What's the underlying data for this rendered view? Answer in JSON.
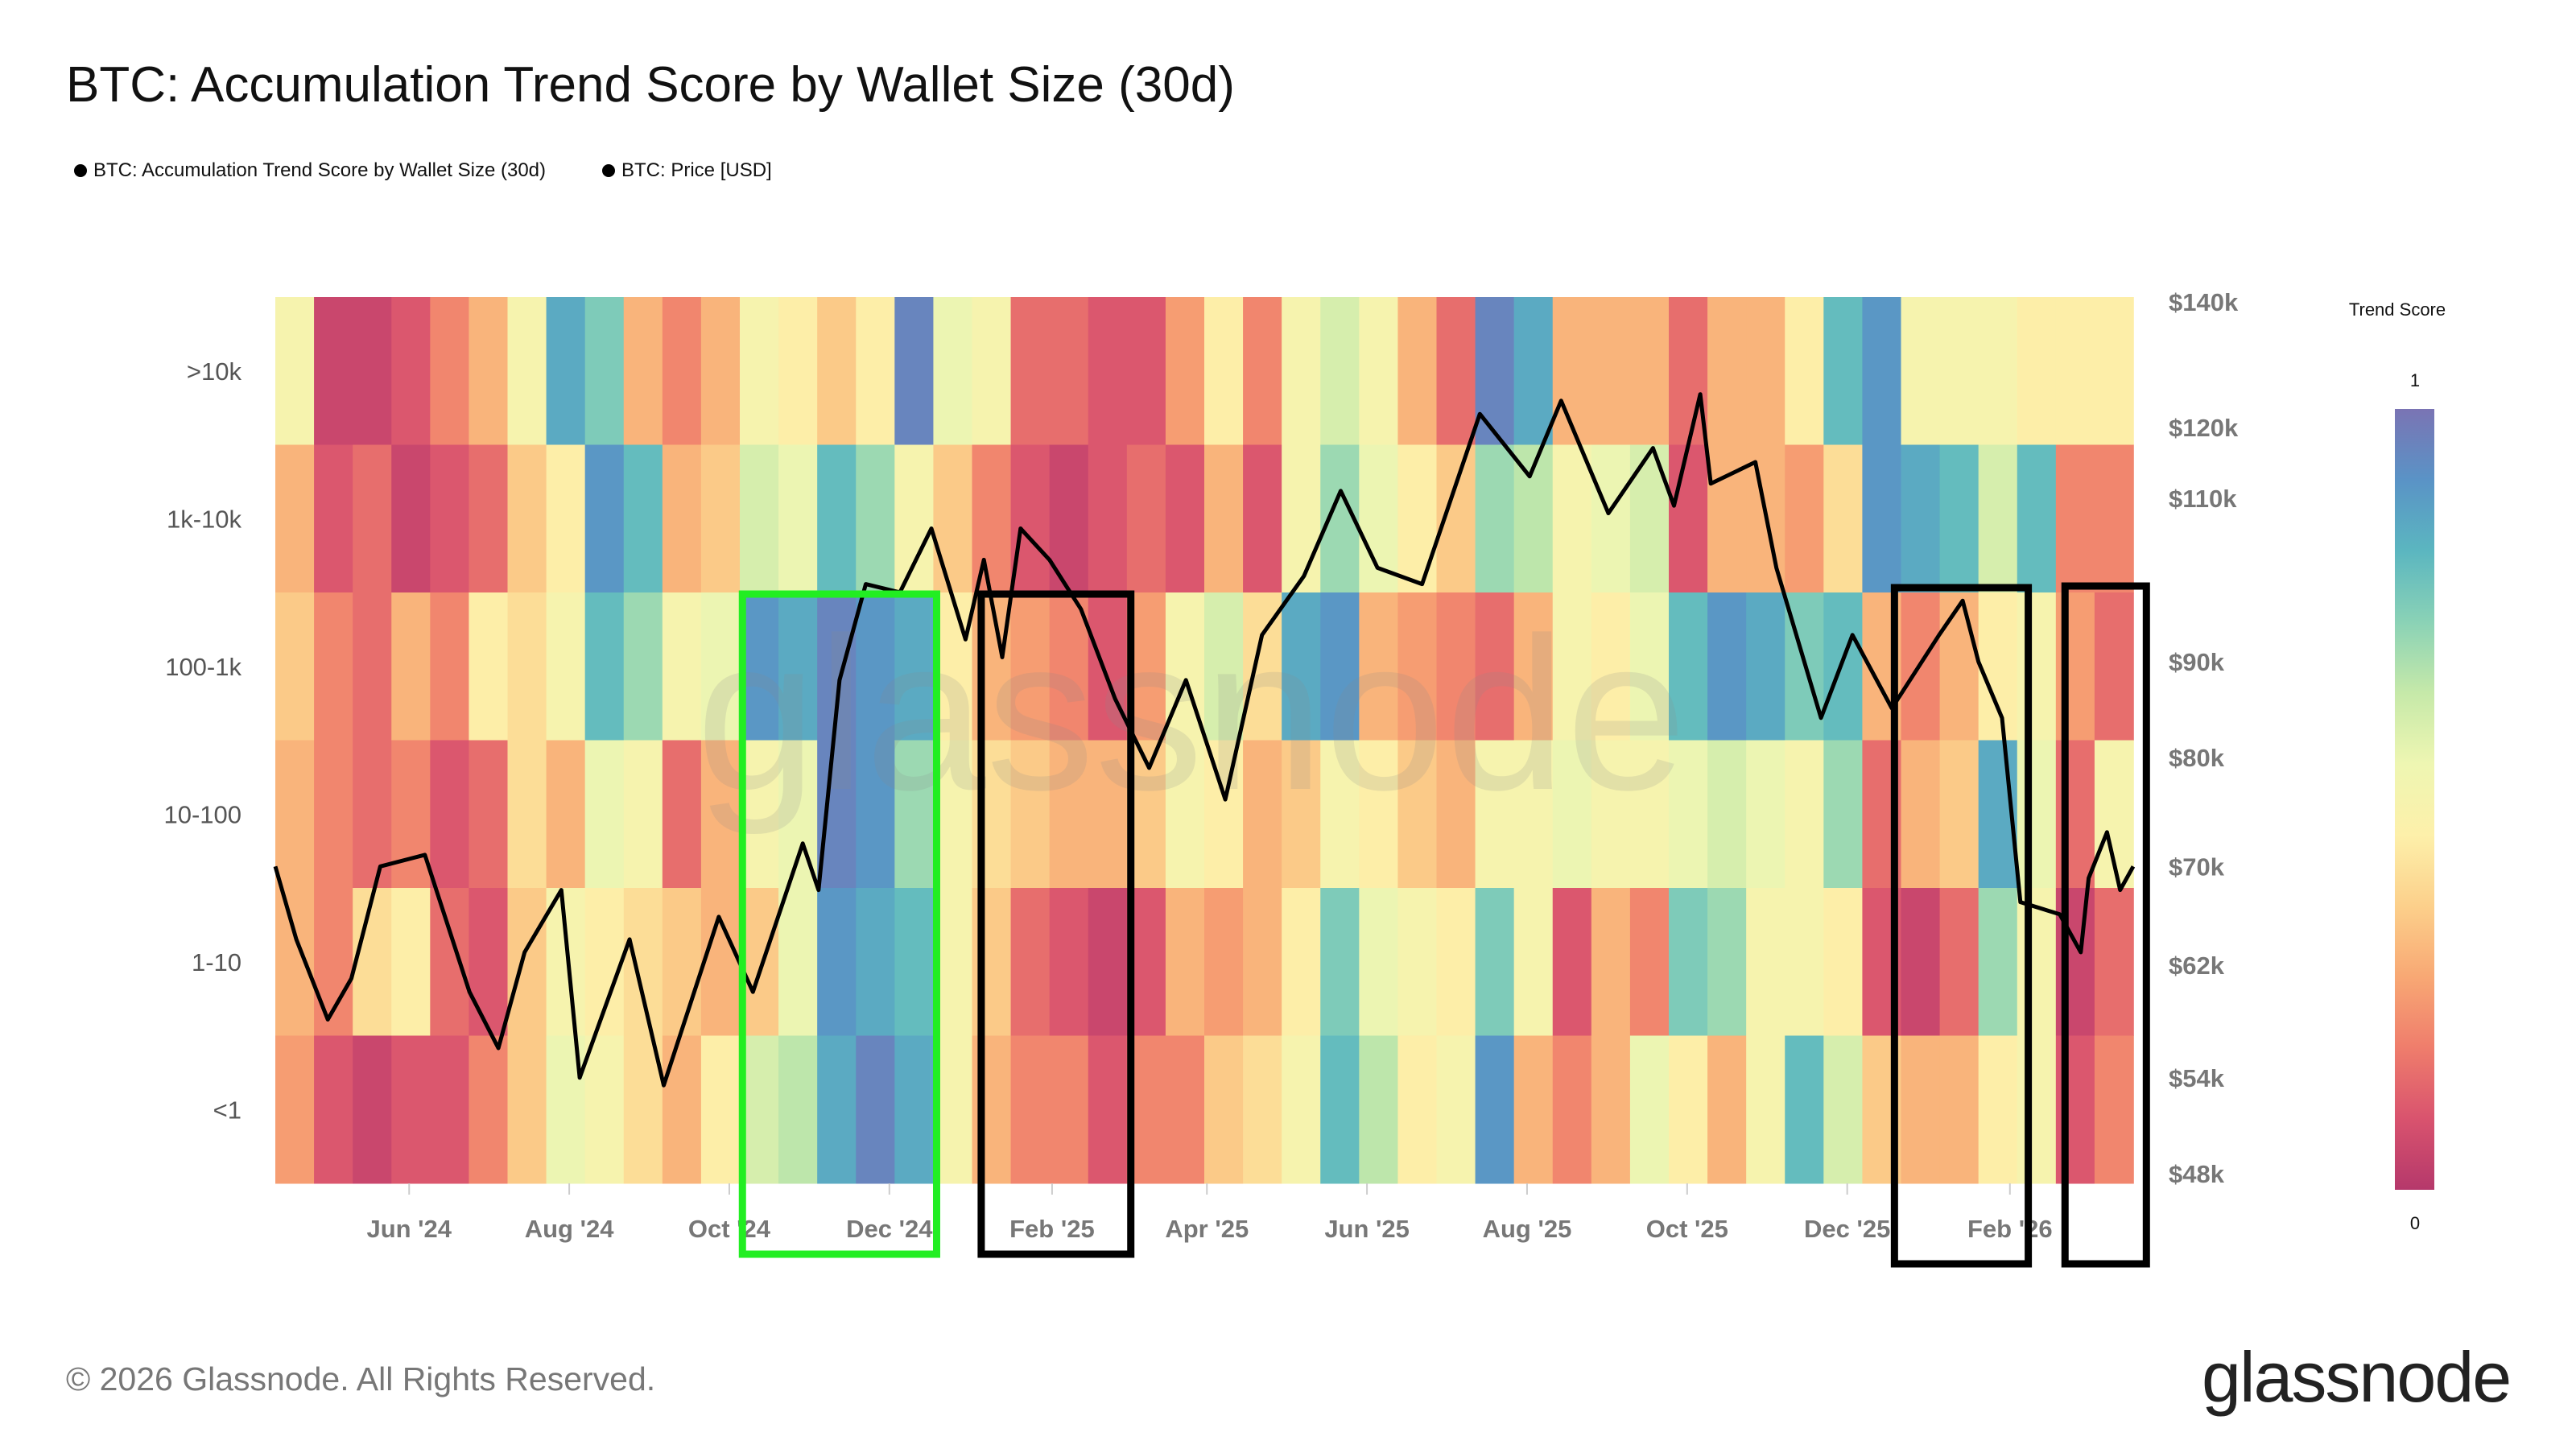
{
  "title": "BTC: Accumulation Trend Score by Wallet Size (30d)",
  "legend": [
    {
      "label": "BTC: Accumulation Trend Score by Wallet Size (30d)"
    },
    {
      "label": "BTC: Price [USD]"
    }
  ],
  "footer": "© 2026 Glassnode. All Rights Reserved.",
  "logo": "glassnode",
  "watermark": "glassnode",
  "chart_data": {
    "type": "heatmap",
    "title": "BTC: Accumulation Trend Score by Wallet Size (30d)",
    "x_range": [
      "2024-04-11",
      "2026-03-20"
    ],
    "x_ticks": [
      {
        "date": "2024-06-01",
        "label": "Jun '24"
      },
      {
        "date": "2024-08-01",
        "label": "Aug '24"
      },
      {
        "date": "2024-10-01",
        "label": "Oct '24"
      },
      {
        "date": "2024-12-01",
        "label": "Dec '24"
      },
      {
        "date": "2025-02-01",
        "label": "Feb '25"
      },
      {
        "date": "2025-04-01",
        "label": "Apr '25"
      },
      {
        "date": "2025-06-01",
        "label": "Jun '25"
      },
      {
        "date": "2025-08-01",
        "label": "Aug '25"
      },
      {
        "date": "2025-10-01",
        "label": "Oct '25"
      },
      {
        "date": "2025-12-01",
        "label": "Dec '25"
      },
      {
        "date": "2026-02-01",
        "label": "Feb '26"
      }
    ],
    "rows": [
      {
        "label": ">10k",
        "values": [
          0.5,
          0.05,
          0.05,
          0.1,
          0.2,
          0.3,
          0.5,
          0.85,
          0.75,
          0.3,
          0.2,
          0.3,
          0.5,
          0.45,
          0.35,
          0.45,
          0.95,
          0.55,
          0.5,
          0.15,
          0.15,
          0.1,
          0.1,
          0.25,
          0.45,
          0.2,
          0.5,
          0.6,
          0.5,
          0.3,
          0.15,
          0.95,
          0.85,
          0.3,
          0.3,
          0.3,
          0.15,
          0.3,
          0.3,
          0.45,
          0.8,
          0.9,
          0.5,
          0.5,
          0.5,
          0.45,
          0.45,
          0.45
        ]
      },
      {
        "label": "1k-10k",
        "values": [
          0.3,
          0.1,
          0.15,
          0.05,
          0.1,
          0.15,
          0.35,
          0.45,
          0.9,
          0.8,
          0.3,
          0.35,
          0.6,
          0.55,
          0.8,
          0.7,
          0.5,
          0.35,
          0.2,
          0.1,
          0.05,
          0.1,
          0.15,
          0.1,
          0.3,
          0.1,
          0.5,
          0.7,
          0.55,
          0.45,
          0.35,
          0.7,
          0.65,
          0.5,
          0.55,
          0.6,
          0.1,
          0.3,
          0.3,
          0.25,
          0.4,
          0.9,
          0.85,
          0.8,
          0.6,
          0.8,
          0.2,
          0.2
        ]
      },
      {
        "label": "100-1k",
        "values": [
          0.35,
          0.2,
          0.15,
          0.3,
          0.2,
          0.45,
          0.4,
          0.5,
          0.8,
          0.7,
          0.5,
          0.55,
          0.9,
          0.85,
          0.95,
          0.9,
          0.85,
          0.45,
          0.3,
          0.25,
          0.2,
          0.1,
          0.25,
          0.5,
          0.6,
          0.4,
          0.85,
          0.9,
          0.3,
          0.25,
          0.2,
          0.15,
          0.3,
          0.5,
          0.45,
          0.55,
          0.8,
          0.9,
          0.85,
          0.75,
          0.8,
          0.3,
          0.2,
          0.3,
          0.45,
          0.5,
          0.25,
          0.15
        ]
      },
      {
        "label": "10-100",
        "values": [
          0.3,
          0.2,
          0.15,
          0.2,
          0.1,
          0.15,
          0.4,
          0.3,
          0.55,
          0.5,
          0.15,
          0.3,
          0.5,
          0.55,
          0.95,
          0.9,
          0.7,
          0.5,
          0.4,
          0.35,
          0.3,
          0.3,
          0.35,
          0.5,
          0.45,
          0.3,
          0.35,
          0.5,
          0.45,
          0.35,
          0.3,
          0.5,
          0.5,
          0.55,
          0.5,
          0.5,
          0.55,
          0.6,
          0.55,
          0.5,
          0.7,
          0.15,
          0.3,
          0.35,
          0.85,
          0.55,
          0.15,
          0.5
        ]
      },
      {
        "label": "1-10",
        "values": [
          0.3,
          0.2,
          0.4,
          0.45,
          0.15,
          0.1,
          0.35,
          0.5,
          0.45,
          0.4,
          0.35,
          0.3,
          0.35,
          0.55,
          0.9,
          0.85,
          0.8,
          0.5,
          0.35,
          0.15,
          0.1,
          0.05,
          0.1,
          0.3,
          0.25,
          0.3,
          0.45,
          0.75,
          0.55,
          0.5,
          0.45,
          0.75,
          0.5,
          0.1,
          0.3,
          0.2,
          0.75,
          0.7,
          0.5,
          0.5,
          0.45,
          0.1,
          0.05,
          0.15,
          0.7,
          0.5,
          0.05,
          0.15
        ]
      },
      {
        "label": "<1",
        "values": [
          0.25,
          0.1,
          0.05,
          0.1,
          0.1,
          0.2,
          0.35,
          0.55,
          0.5,
          0.4,
          0.3,
          0.45,
          0.6,
          0.65,
          0.85,
          0.95,
          0.85,
          0.5,
          0.3,
          0.2,
          0.2,
          0.1,
          0.2,
          0.2,
          0.35,
          0.4,
          0.5,
          0.8,
          0.65,
          0.45,
          0.5,
          0.9,
          0.3,
          0.2,
          0.3,
          0.55,
          0.45,
          0.3,
          0.5,
          0.8,
          0.6,
          0.35,
          0.3,
          0.3,
          0.45,
          0.5,
          0.1,
          0.2
        ]
      }
    ],
    "colorbar": {
      "title": "Trend Score",
      "min_label": "0",
      "max_label": "1",
      "range": [
        0,
        1
      ],
      "colors": [
        "#b5386b",
        "#d9536e",
        "#ef7d6c",
        "#f8a874",
        "#fcd08b",
        "#fdf0aa",
        "#eef6b2",
        "#c6e9a9",
        "#8ad2b6",
        "#5bb6c0",
        "#5a93c6",
        "#7a74b4"
      ]
    },
    "price_series": {
      "name": "BTC: Price [USD]",
      "scale": "log",
      "range": [
        46000,
        142000
      ],
      "ticks": [
        {
          "value": 140000,
          "label": "$140k"
        },
        {
          "value": 120000,
          "label": "$120k"
        },
        {
          "value": 110000,
          "label": "$110k"
        },
        {
          "value": 90000,
          "label": "$90k"
        },
        {
          "value": 80000,
          "label": "$80k"
        },
        {
          "value": 70000,
          "label": "$70k"
        },
        {
          "value": 62000,
          "label": "$62k"
        },
        {
          "value": 54000,
          "label": "$54k"
        },
        {
          "value": 48000,
          "label": "$48k"
        }
      ],
      "points": [
        [
          "2024-04-11",
          70000
        ],
        [
          "2024-04-19",
          64000
        ],
        [
          "2024-05-01",
          58000
        ],
        [
          "2024-05-10",
          61000
        ],
        [
          "2024-05-21",
          70000
        ],
        [
          "2024-06-07",
          71000
        ],
        [
          "2024-06-24",
          60000
        ],
        [
          "2024-07-05",
          56000
        ],
        [
          "2024-07-15",
          63000
        ],
        [
          "2024-07-29",
          68000
        ],
        [
          "2024-08-05",
          54000
        ],
        [
          "2024-08-24",
          64000
        ],
        [
          "2024-09-06",
          53500
        ],
        [
          "2024-09-27",
          65800
        ],
        [
          "2024-10-10",
          60000
        ],
        [
          "2024-10-29",
          72000
        ],
        [
          "2024-11-04",
          68000
        ],
        [
          "2024-11-12",
          88000
        ],
        [
          "2024-11-22",
          99000
        ],
        [
          "2024-12-05",
          98000
        ],
        [
          "2024-12-17",
          106000
        ],
        [
          "2024-12-30",
          92500
        ],
        [
          "2025-01-06",
          102000
        ],
        [
          "2025-01-13",
          90500
        ],
        [
          "2025-01-20",
          106000
        ],
        [
          "2025-01-31",
          102000
        ],
        [
          "2025-02-12",
          96000
        ],
        [
          "2025-02-25",
          86000
        ],
        [
          "2025-03-10",
          79000
        ],
        [
          "2025-03-24",
          88000
        ],
        [
          "2025-04-08",
          76000
        ],
        [
          "2025-04-22",
          93000
        ],
        [
          "2025-05-08",
          100000
        ],
        [
          "2025-05-22",
          111000
        ],
        [
          "2025-06-05",
          101000
        ],
        [
          "2025-06-22",
          99000
        ],
        [
          "2025-07-14",
          122000
        ],
        [
          "2025-08-02",
          113000
        ],
        [
          "2025-08-14",
          124000
        ],
        [
          "2025-09-01",
          108000
        ],
        [
          "2025-09-18",
          117000
        ],
        [
          "2025-09-26",
          109000
        ],
        [
          "2025-10-06",
          125000
        ],
        [
          "2025-10-10",
          112000
        ],
        [
          "2025-10-27",
          115000
        ],
        [
          "2025-11-04",
          101000
        ],
        [
          "2025-11-21",
          84000
        ],
        [
          "2025-12-03",
          93000
        ],
        [
          "2025-12-18",
          85000
        ],
        [
          "2026-01-05",
          93000
        ],
        [
          "2026-01-14",
          97000
        ],
        [
          "2026-01-20",
          90000
        ],
        [
          "2026-01-29",
          84000
        ],
        [
          "2026-02-05",
          67000
        ],
        [
          "2026-02-20",
          66000
        ],
        [
          "2026-02-28",
          63000
        ],
        [
          "2026-03-03",
          69000
        ],
        [
          "2026-03-10",
          73000
        ],
        [
          "2026-03-15",
          68000
        ],
        [
          "2026-03-20",
          70000
        ]
      ]
    },
    "annotations": [
      {
        "type": "box",
        "color": "#22ee22",
        "from": "2024-10-06",
        "to": "2024-12-19"
      },
      {
        "type": "box",
        "color": "#000000",
        "from": "2025-01-05",
        "to": "2025-03-03"
      },
      {
        "type": "box",
        "color": "#000000",
        "from": "2025-12-19",
        "to": "2026-02-08"
      },
      {
        "type": "box",
        "color": "#000000",
        "from": "2026-02-22",
        "to": "2026-03-25"
      }
    ]
  }
}
